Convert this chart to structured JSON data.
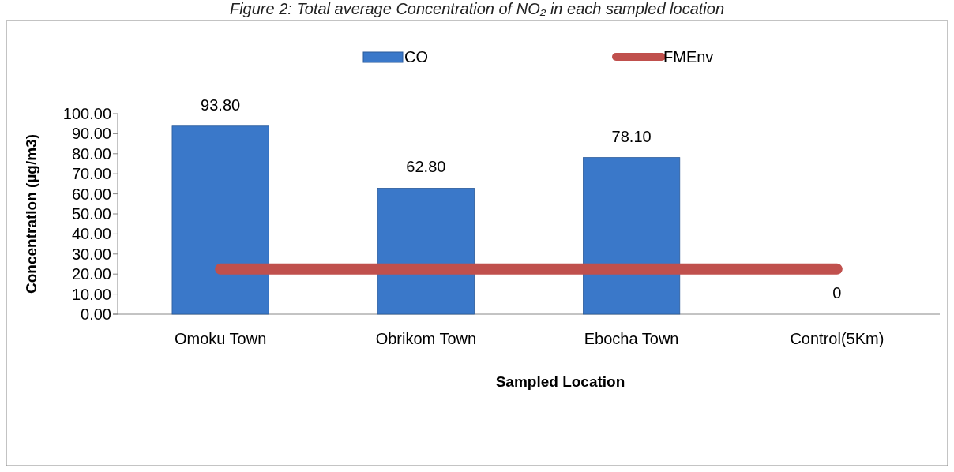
{
  "chart_data": {
    "type": "bar",
    "title": "Figure 2: Total average Concentration of NO₂ in each sampled location",
    "xlabel": "Sampled Location",
    "ylabel": "Concentration (µg/m3)",
    "categories": [
      "Omoku Town",
      "Obrikom Town",
      "Ebocha Town",
      "Control(5Km)"
    ],
    "series": [
      {
        "name": "CO",
        "color": "#3a78c9",
        "values": [
          93.8,
          62.8,
          78.1,
          0
        ],
        "value_labels": [
          "93.80",
          "62.80",
          "78.10",
          "0"
        ]
      },
      {
        "name": "FMEnv",
        "type": "line",
        "color": "#c0504d",
        "values": [
          22.5,
          22.5,
          22.5,
          22.5
        ]
      }
    ],
    "ylim": [
      0,
      100
    ],
    "yticks": [
      {
        "value": 0,
        "label": "0.00"
      },
      {
        "value": 10,
        "label": "10.00"
      },
      {
        "value": 20,
        "label": "20.00"
      },
      {
        "value": 30,
        "label": "30.00"
      },
      {
        "value": 40,
        "label": "40.00"
      },
      {
        "value": 50,
        "label": "50.00"
      },
      {
        "value": 60,
        "label": "60.00"
      },
      {
        "value": 70,
        "label": "70.00"
      },
      {
        "value": 80,
        "label": "80.00"
      },
      {
        "value": 90,
        "label": "90.00"
      },
      {
        "value": 100,
        "label": "100.00"
      }
    ],
    "grid": false,
    "legend": "top"
  }
}
